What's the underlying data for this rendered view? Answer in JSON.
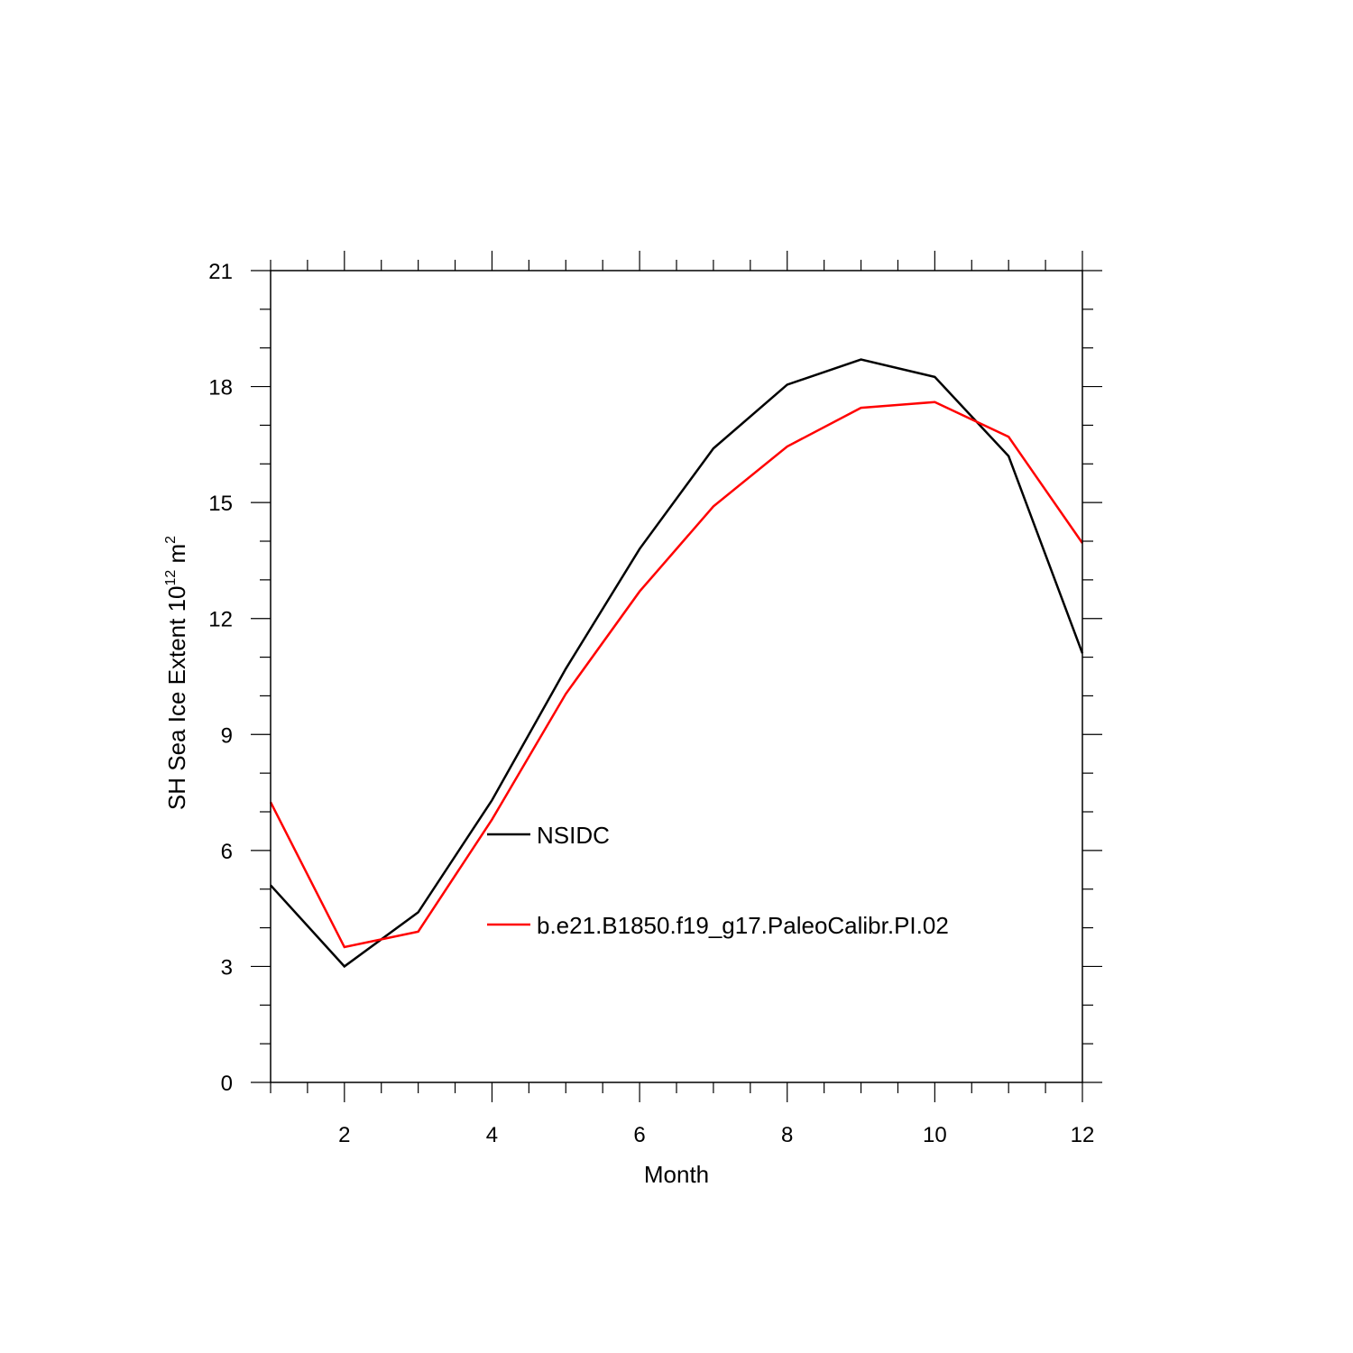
{
  "chart_data": {
    "type": "line",
    "xlabel": "Month",
    "ylabel": {
      "prefix": "SH Sea Ice Extent 10",
      "exp1": "12",
      "mid": " m",
      "exp2": "2"
    },
    "xlim": [
      1,
      12
    ],
    "ylim": [
      0,
      21
    ],
    "xticks": [
      2,
      4,
      6,
      8,
      10,
      12
    ],
    "yticks": [
      0,
      3,
      6,
      9,
      12,
      15,
      18,
      21
    ],
    "grid": false,
    "legend_position": "center",
    "x": [
      1,
      2,
      3,
      4,
      5,
      6,
      7,
      8,
      9,
      10,
      11,
      12
    ],
    "series": [
      {
        "name": "NSIDC",
        "color": "#000000",
        "values": [
          5.1,
          3.0,
          4.4,
          7.3,
          10.7,
          13.8,
          16.4,
          18.05,
          18.7,
          18.25,
          16.2,
          11.1
        ]
      },
      {
        "name": "b.e21.B1850.f19_g17.PaleoCalibr.PI.02",
        "color": "#ff0000",
        "values": [
          7.25,
          3.5,
          3.9,
          6.8,
          10.05,
          12.7,
          14.9,
          16.45,
          17.45,
          17.6,
          16.7,
          13.95
        ]
      }
    ]
  }
}
